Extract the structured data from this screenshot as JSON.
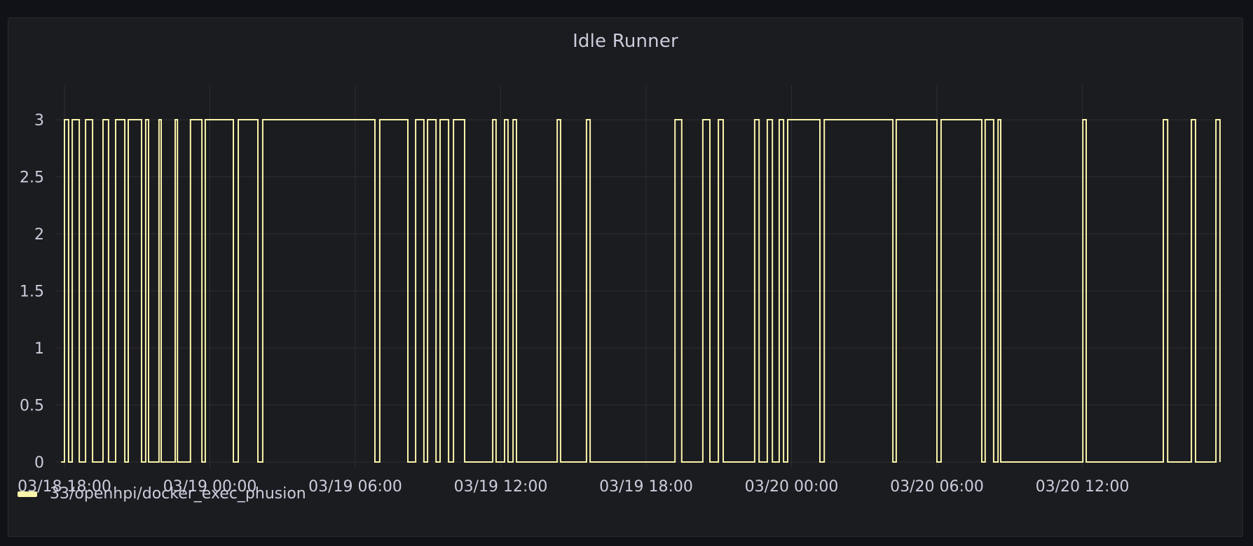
{
  "panel": {
    "title": "Idle Runner"
  },
  "legend": {
    "items": [
      {
        "label": "33/openhpi/docker_exec_phusion",
        "color": "#fcf5ab"
      }
    ]
  },
  "colors": {
    "background": "#111217",
    "panel": "#1b1c20",
    "grid": "#2c2d32",
    "text": "#ccccdc",
    "series": "#fcf5ab"
  },
  "chart_data": {
    "type": "line",
    "title": "Idle Runner",
    "xlabel": "",
    "ylabel": "",
    "ylim": [
      0,
      3
    ],
    "y_ticks": [
      "0",
      "0.5",
      "1",
      "1.5",
      "2",
      "2.5",
      "3"
    ],
    "x_tick_labels": [
      "03/18 18:00",
      "03/19 00:00",
      "03/19 06:00",
      "03/19 12:00",
      "03/19 18:00",
      "03/20 00:00",
      "03/20 06:00",
      "03/20 12:00"
    ],
    "x_unit": "hours since 03/18 18:00",
    "x_tick_hours": [
      0,
      6,
      12,
      18,
      24,
      30,
      36,
      42
    ],
    "xlim_hours": [
      -0.14,
      47.68
    ],
    "grid": true,
    "legend_position": "bottom-left",
    "interpolation": "step-after",
    "series": [
      {
        "name": "33/openhpi/docker_exec_phusion",
        "color": "#fcf5ab",
        "start_value": 0,
        "alternating_values": [
          0,
          3
        ],
        "transition_hours": [
          -0.14,
          0,
          0.17,
          0.32,
          0.61,
          0.87,
          1.16,
          1.59,
          1.82,
          2.11,
          2.49,
          2.63,
          3.18,
          3.35,
          3.47,
          3.9,
          3.99,
          4.57,
          4.66,
          5.2,
          5.67,
          5.81,
          6.97,
          7.17,
          7.98,
          8.18,
          12.81,
          13.01,
          14.17,
          14.49,
          14.83,
          14.98,
          15.33,
          15.5,
          15.85,
          16.05,
          16.51,
          17.67,
          17.81,
          18.16,
          18.3,
          18.51,
          18.65,
          20.33,
          20.47,
          21.54,
          21.69,
          25.19,
          25.47,
          26.34,
          26.63,
          26.98,
          27.18,
          28.48,
          28.66,
          29.0,
          29.21,
          29.49,
          29.67,
          29.84,
          31.17,
          31.35,
          34.18,
          34.32,
          36.0,
          36.17,
          37.85,
          37.99,
          38.34,
          38.52,
          38.63,
          42.02,
          42.16,
          45.34,
          45.52,
          46.5,
          46.67,
          47.51
        ],
        "end_hour": 47.68
      }
    ]
  }
}
